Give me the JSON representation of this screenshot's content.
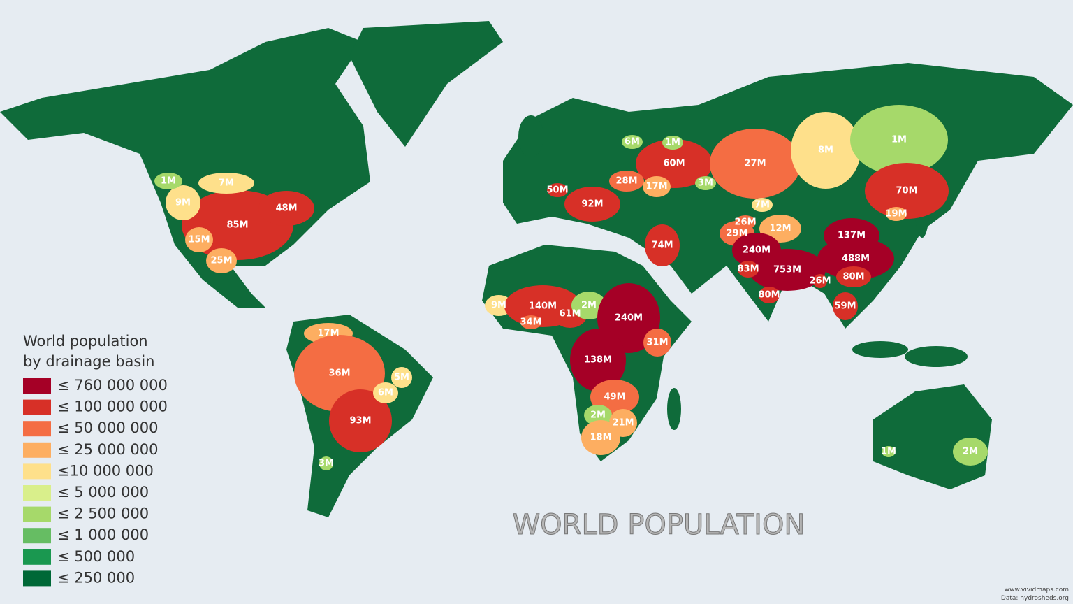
{
  "title": "WORLD POPULATION",
  "legend": {
    "title_lines": [
      "World population",
      "by drainage basin"
    ],
    "items": [
      {
        "label": "≤ 760 000 000",
        "color": "#a50026"
      },
      {
        "label": "≤ 100 000 000",
        "color": "#d73027"
      },
      {
        "label": "≤ 50 000 000",
        "color": "#f46d43"
      },
      {
        "label": "≤ 25 000 000",
        "color": "#fdae61"
      },
      {
        "label": "≤10 000 000",
        "color": "#fee08b"
      },
      {
        "label": "≤ 5 000 000",
        "color": "#d9ef8b"
      },
      {
        "label": "≤ 2 500 000",
        "color": "#a6d96a"
      },
      {
        "label": "≤ 1 000 000",
        "color": "#66bd63"
      },
      {
        "label": "≤ 500 000",
        "color": "#1a9850"
      },
      {
        "label": "≤ 250 000",
        "color": "#006837"
      }
    ]
  },
  "basins": [
    "85M",
    "48M",
    "7M",
    "9M",
    "1M",
    "15M",
    "25M",
    "17M",
    "36M",
    "93M",
    "6M",
    "5M",
    "9M",
    "140M",
    "61M",
    "34M",
    "2M",
    "240M",
    "31M",
    "138M",
    "49M",
    "2M",
    "21M",
    "18M",
    "60M",
    "27M",
    "8M",
    "1M",
    "6M",
    "1M",
    "28M",
    "17M",
    "92M",
    "50M",
    "3M",
    "74M",
    "26M",
    "29M",
    "12M",
    "7M",
    "240M",
    "753M",
    "83M",
    "137M",
    "488M",
    "80M",
    "80M",
    "59M",
    "26M",
    "70M",
    "19M",
    "2M",
    "1M",
    "3M"
  ],
  "credits": [
    "www.vividmaps.com",
    "Data: hydrosheds.org"
  ]
}
